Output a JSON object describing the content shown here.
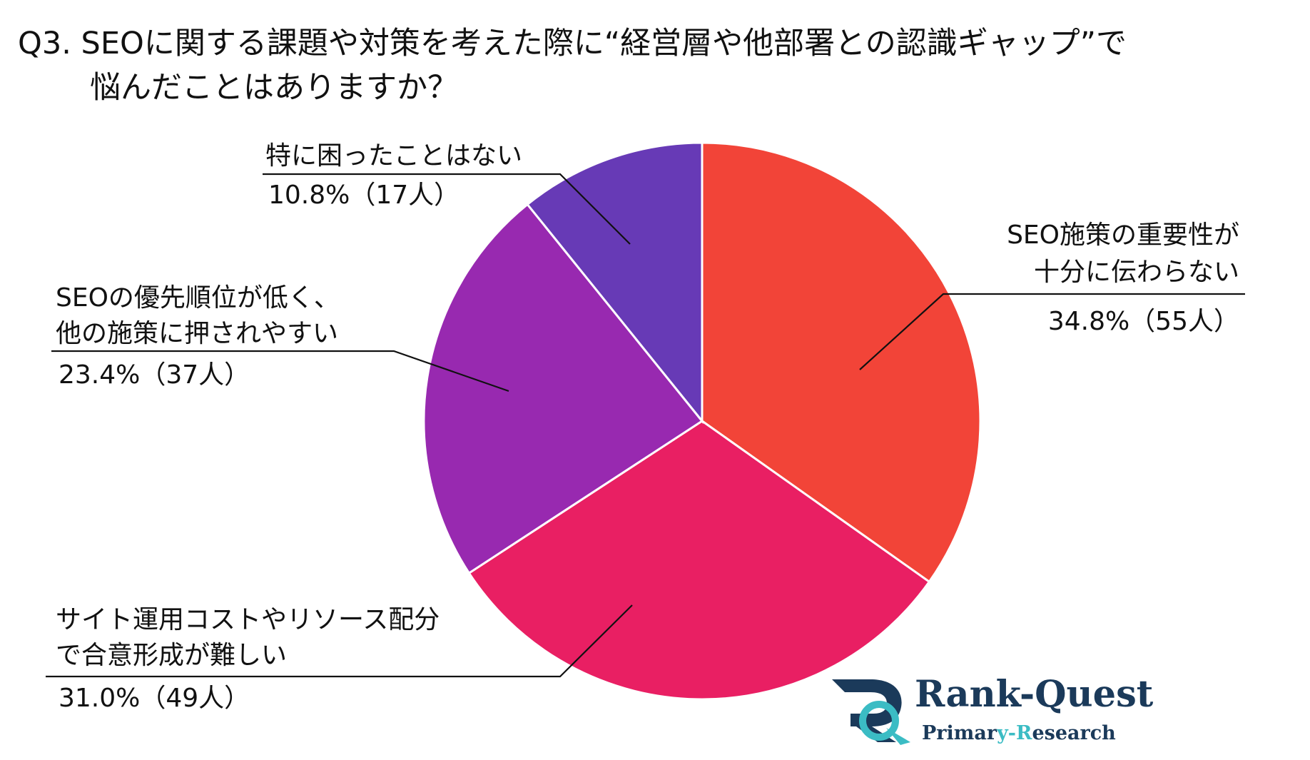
{
  "title": {
    "line1": "Q3. SEOに関する課題や対策を考えた際に“経営層や他部署との認識ギャップ”で",
    "line2": "悩んだことはありますか？"
  },
  "chart_data": {
    "type": "pie",
    "start": "12 o'clock",
    "direction": "clockwise",
    "slices": [
      {
        "label_lines": [
          "SEO施策の重要性が",
          "十分に伝わらない"
        ],
        "value": 34.8,
        "count": 55,
        "value_text": "34.8%（55人）",
        "color": "#f24438"
      },
      {
        "label_lines": [
          "サイト運用コストやリソース配分",
          "で合意形成が難しい"
        ],
        "value": 31.0,
        "count": 49,
        "value_text": "31.0%（49人）",
        "color": "#e91f63"
      },
      {
        "label_lines": [
          "SEOの優先順位が低く、",
          "他の施策に押されやすい"
        ],
        "value": 23.4,
        "count": 37,
        "value_text": "23.4%（37人）",
        "color": "#9829b0"
      },
      {
        "label_lines": [
          "特に困ったことはない"
        ],
        "value": 10.8,
        "count": 17,
        "value_text": "10.8%（17人）",
        "color": "#673ab6"
      }
    ]
  },
  "logo": {
    "name_part1": "Rank-",
    "name_part2": "Quest",
    "sub_part1": "Primar",
    "sub_part2": "y-",
    "sub_part3": "R",
    "sub_part4": "esearch",
    "colors": {
      "navy": "#1b3a5a",
      "teal": "#3bbcc4"
    }
  }
}
